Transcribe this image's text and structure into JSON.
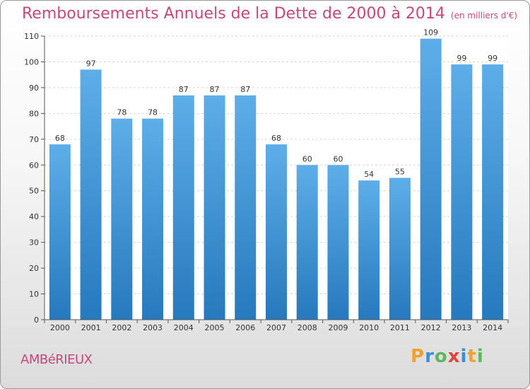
{
  "chart_data": {
    "type": "bar",
    "title": "Remboursements Annuels de la Dette de 2000 à 2014",
    "unit": "(en milliers d'€)",
    "xlabel": "",
    "ylabel": "",
    "categories": [
      "2000",
      "2001",
      "2002",
      "2003",
      "2004",
      "2005",
      "2006",
      "2007",
      "2008",
      "2009",
      "2010",
      "2011",
      "2012",
      "2013",
      "2014"
    ],
    "values": [
      68,
      97,
      78,
      78,
      87,
      87,
      87,
      68,
      60,
      60,
      54,
      55,
      109,
      99,
      99
    ],
    "ylim": [
      0,
      110
    ],
    "yticks": [
      0,
      10,
      20,
      30,
      40,
      50,
      60,
      70,
      80,
      90,
      100,
      110
    ],
    "grid": true,
    "bar_color": "#3a8fd6"
  },
  "footer": {
    "commune": "AMBéRIEUX",
    "brand": "Proxiti",
    "brand_letters": [
      {
        "ch": "P",
        "color": "#f0a22a"
      },
      {
        "ch": "r",
        "color": "#3a8fd6"
      },
      {
        "ch": "o",
        "color": "#5cb85c"
      },
      {
        "ch": "x",
        "color": "#e0443c"
      },
      {
        "ch": "i",
        "color": "#3a8fd6"
      },
      {
        "ch": "t",
        "color": "#f0a22a"
      },
      {
        "ch": "i",
        "color": "#5cb85c"
      }
    ]
  },
  "colors": {
    "accent": "#c2497a",
    "bar_light": "#5daee8",
    "bar_dark": "#2679bd"
  }
}
